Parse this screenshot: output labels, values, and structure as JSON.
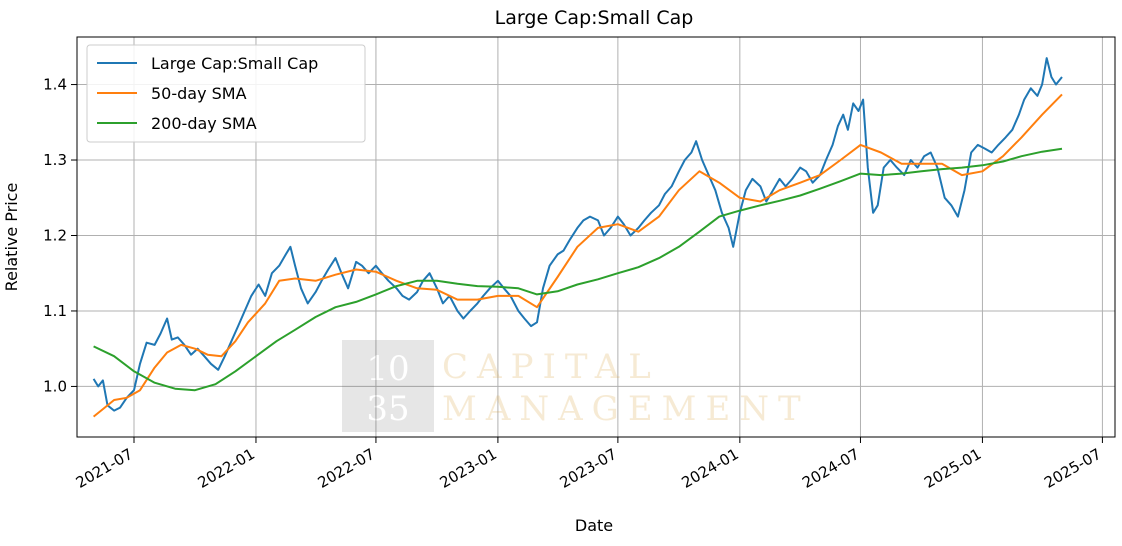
{
  "chart_data": {
    "type": "line",
    "title": "Large Cap:Small Cap",
    "xlabel": "Date",
    "ylabel": "Relative Price",
    "xlim": [
      "2021-04-06",
      "2025-07-20"
    ],
    "ylim": [
      0.933,
      1.463
    ],
    "x_ticks": [
      "2021-07-01",
      "2022-01-01",
      "2022-07-01",
      "2023-01-01",
      "2023-07-01",
      "2024-01-01",
      "2024-07-01",
      "2025-01-01",
      "2025-07-01"
    ],
    "x_tick_labels": [
      "2021-07",
      "2022-01",
      "2022-07",
      "2023-01",
      "2023-07",
      "2024-01",
      "2024-07",
      "2025-01",
      "2025-07"
    ],
    "y_ticks": [
      1.0,
      1.1,
      1.2,
      1.3,
      1.4
    ],
    "y_tick_labels": [
      "1.0",
      "1.1",
      "1.2",
      "1.3",
      "1.4"
    ],
    "grid": true,
    "legend_position": "top-left",
    "series": [
      {
        "name": "Large Cap:Small Cap",
        "color": "#1f77b4",
        "points": [
          [
            "2021-05-01",
            1.01
          ],
          [
            "2021-05-08",
            1.0
          ],
          [
            "2021-05-15",
            1.008
          ],
          [
            "2021-05-22",
            0.975
          ],
          [
            "2021-06-01",
            0.968
          ],
          [
            "2021-06-10",
            0.972
          ],
          [
            "2021-06-20",
            0.985
          ],
          [
            "2021-07-01",
            0.995
          ],
          [
            "2021-07-10",
            1.03
          ],
          [
            "2021-07-20",
            1.058
          ],
          [
            "2021-08-01",
            1.055
          ],
          [
            "2021-08-10",
            1.07
          ],
          [
            "2021-08-20",
            1.09
          ],
          [
            "2021-08-27",
            1.062
          ],
          [
            "2021-09-05",
            1.065
          ],
          [
            "2021-09-15",
            1.055
          ],
          [
            "2021-09-25",
            1.042
          ],
          [
            "2021-10-05",
            1.05
          ],
          [
            "2021-10-15",
            1.04
          ],
          [
            "2021-10-25",
            1.03
          ],
          [
            "2021-11-05",
            1.022
          ],
          [
            "2021-11-15",
            1.04
          ],
          [
            "2021-11-25",
            1.06
          ],
          [
            "2021-12-05",
            1.08
          ],
          [
            "2021-12-15",
            1.1
          ],
          [
            "2021-12-25",
            1.12
          ],
          [
            "2022-01-05",
            1.135
          ],
          [
            "2022-01-15",
            1.12
          ],
          [
            "2022-01-25",
            1.15
          ],
          [
            "2022-02-05",
            1.16
          ],
          [
            "2022-02-15",
            1.175
          ],
          [
            "2022-02-22",
            1.185
          ],
          [
            "2022-03-01",
            1.16
          ],
          [
            "2022-03-10",
            1.13
          ],
          [
            "2022-03-20",
            1.11
          ],
          [
            "2022-04-01",
            1.125
          ],
          [
            "2022-04-10",
            1.14
          ],
          [
            "2022-04-20",
            1.155
          ],
          [
            "2022-05-01",
            1.17
          ],
          [
            "2022-05-10",
            1.15
          ],
          [
            "2022-05-20",
            1.13
          ],
          [
            "2022-06-01",
            1.165
          ],
          [
            "2022-06-10",
            1.16
          ],
          [
            "2022-06-20",
            1.15
          ],
          [
            "2022-07-01",
            1.16
          ],
          [
            "2022-07-10",
            1.15
          ],
          [
            "2022-07-20",
            1.14
          ],
          [
            "2022-08-01",
            1.13
          ],
          [
            "2022-08-10",
            1.12
          ],
          [
            "2022-08-20",
            1.115
          ],
          [
            "2022-09-01",
            1.125
          ],
          [
            "2022-09-10",
            1.14
          ],
          [
            "2022-09-20",
            1.15
          ],
          [
            "2022-10-01",
            1.13
          ],
          [
            "2022-10-10",
            1.11
          ],
          [
            "2022-10-20",
            1.12
          ],
          [
            "2022-11-01",
            1.1
          ],
          [
            "2022-11-10",
            1.09
          ],
          [
            "2022-11-20",
            1.1
          ],
          [
            "2022-12-01",
            1.11
          ],
          [
            "2022-12-10",
            1.12
          ],
          [
            "2022-12-20",
            1.13
          ],
          [
            "2023-01-01",
            1.14
          ],
          [
            "2023-01-10",
            1.13
          ],
          [
            "2023-01-20",
            1.12
          ],
          [
            "2023-02-01",
            1.1
          ],
          [
            "2023-02-10",
            1.09
          ],
          [
            "2023-02-20",
            1.08
          ],
          [
            "2023-03-01",
            1.085
          ],
          [
            "2023-03-10",
            1.13
          ],
          [
            "2023-03-20",
            1.16
          ],
          [
            "2023-04-01",
            1.175
          ],
          [
            "2023-04-10",
            1.18
          ],
          [
            "2023-04-20",
            1.195
          ],
          [
            "2023-05-01",
            1.21
          ],
          [
            "2023-05-10",
            1.22
          ],
          [
            "2023-05-20",
            1.225
          ],
          [
            "2023-06-01",
            1.22
          ],
          [
            "2023-06-10",
            1.2
          ],
          [
            "2023-06-20",
            1.21
          ],
          [
            "2023-07-01",
            1.225
          ],
          [
            "2023-07-10",
            1.215
          ],
          [
            "2023-07-20",
            1.2
          ],
          [
            "2023-08-01",
            1.21
          ],
          [
            "2023-08-10",
            1.22
          ],
          [
            "2023-08-20",
            1.23
          ],
          [
            "2023-09-01",
            1.24
          ],
          [
            "2023-09-10",
            1.255
          ],
          [
            "2023-09-20",
            1.265
          ],
          [
            "2023-10-01",
            1.285
          ],
          [
            "2023-10-10",
            1.3
          ],
          [
            "2023-10-20",
            1.31
          ],
          [
            "2023-10-27",
            1.325
          ],
          [
            "2023-11-05",
            1.3
          ],
          [
            "2023-11-15",
            1.28
          ],
          [
            "2023-11-25",
            1.26
          ],
          [
            "2023-12-05",
            1.23
          ],
          [
            "2023-12-15",
            1.21
          ],
          [
            "2023-12-22",
            1.185
          ],
          [
            "2024-01-01",
            1.23
          ],
          [
            "2024-01-10",
            1.26
          ],
          [
            "2024-01-20",
            1.275
          ],
          [
            "2024-02-01",
            1.265
          ],
          [
            "2024-02-10",
            1.245
          ],
          [
            "2024-02-20",
            1.26
          ],
          [
            "2024-03-01",
            1.275
          ],
          [
            "2024-03-10",
            1.265
          ],
          [
            "2024-03-20",
            1.275
          ],
          [
            "2024-04-01",
            1.29
          ],
          [
            "2024-04-10",
            1.285
          ],
          [
            "2024-04-20",
            1.27
          ],
          [
            "2024-05-01",
            1.28
          ],
          [
            "2024-05-10",
            1.3
          ],
          [
            "2024-05-20",
            1.32
          ],
          [
            "2024-05-28",
            1.345
          ],
          [
            "2024-06-05",
            1.36
          ],
          [
            "2024-06-12",
            1.34
          ],
          [
            "2024-06-20",
            1.375
          ],
          [
            "2024-06-28",
            1.365
          ],
          [
            "2024-07-05",
            1.38
          ],
          [
            "2024-07-12",
            1.29
          ],
          [
            "2024-07-20",
            1.23
          ],
          [
            "2024-07-27",
            1.24
          ],
          [
            "2024-08-05",
            1.29
          ],
          [
            "2024-08-15",
            1.3
          ],
          [
            "2024-08-25",
            1.29
          ],
          [
            "2024-09-05",
            1.28
          ],
          [
            "2024-09-15",
            1.3
          ],
          [
            "2024-09-25",
            1.29
          ],
          [
            "2024-10-05",
            1.305
          ],
          [
            "2024-10-15",
            1.31
          ],
          [
            "2024-10-25",
            1.29
          ],
          [
            "2024-11-05",
            1.25
          ],
          [
            "2024-11-15",
            1.24
          ],
          [
            "2024-11-25",
            1.225
          ],
          [
            "2024-12-05",
            1.26
          ],
          [
            "2024-12-15",
            1.31
          ],
          [
            "2024-12-25",
            1.32
          ],
          [
            "2025-01-05",
            1.315
          ],
          [
            "2025-01-15",
            1.31
          ],
          [
            "2025-01-25",
            1.32
          ],
          [
            "2025-02-05",
            1.33
          ],
          [
            "2025-02-15",
            1.34
          ],
          [
            "2025-02-25",
            1.36
          ],
          [
            "2025-03-05",
            1.38
          ],
          [
            "2025-03-15",
            1.395
          ],
          [
            "2025-03-25",
            1.385
          ],
          [
            "2025-04-01",
            1.4
          ],
          [
            "2025-04-08",
            1.435
          ],
          [
            "2025-04-15",
            1.41
          ],
          [
            "2025-04-22",
            1.4
          ],
          [
            "2025-05-01",
            1.41
          ]
        ]
      },
      {
        "name": "50-day SMA",
        "color": "#ff7f0e",
        "points": [
          [
            "2021-05-01",
            0.96
          ],
          [
            "2021-05-15",
            0.97
          ],
          [
            "2021-06-01",
            0.982
          ],
          [
            "2021-06-20",
            0.985
          ],
          [
            "2021-07-10",
            0.995
          ],
          [
            "2021-08-01",
            1.025
          ],
          [
            "2021-08-20",
            1.045
          ],
          [
            "2021-09-10",
            1.055
          ],
          [
            "2021-10-01",
            1.05
          ],
          [
            "2021-10-20",
            1.042
          ],
          [
            "2021-11-10",
            1.04
          ],
          [
            "2021-12-01",
            1.06
          ],
          [
            "2021-12-20",
            1.085
          ],
          [
            "2022-01-15",
            1.11
          ],
          [
            "2022-02-05",
            1.14
          ],
          [
            "2022-03-01",
            1.143
          ],
          [
            "2022-04-01",
            1.14
          ],
          [
            "2022-05-01",
            1.148
          ],
          [
            "2022-06-01",
            1.155
          ],
          [
            "2022-07-01",
            1.152
          ],
          [
            "2022-08-01",
            1.14
          ],
          [
            "2022-09-01",
            1.13
          ],
          [
            "2022-10-01",
            1.128
          ],
          [
            "2022-11-01",
            1.115
          ],
          [
            "2022-12-01",
            1.115
          ],
          [
            "2023-01-01",
            1.12
          ],
          [
            "2023-02-01",
            1.12
          ],
          [
            "2023-03-01",
            1.105
          ],
          [
            "2023-04-01",
            1.145
          ],
          [
            "2023-05-01",
            1.185
          ],
          [
            "2023-06-01",
            1.21
          ],
          [
            "2023-07-01",
            1.215
          ],
          [
            "2023-08-01",
            1.205
          ],
          [
            "2023-09-01",
            1.225
          ],
          [
            "2023-10-01",
            1.26
          ],
          [
            "2023-11-01",
            1.285
          ],
          [
            "2023-12-01",
            1.27
          ],
          [
            "2024-01-01",
            1.25
          ],
          [
            "2024-02-01",
            1.245
          ],
          [
            "2024-03-01",
            1.26
          ],
          [
            "2024-04-01",
            1.27
          ],
          [
            "2024-05-01",
            1.28
          ],
          [
            "2024-06-01",
            1.3
          ],
          [
            "2024-07-01",
            1.32
          ],
          [
            "2024-08-01",
            1.31
          ],
          [
            "2024-09-01",
            1.295
          ],
          [
            "2024-10-01",
            1.295
          ],
          [
            "2024-11-01",
            1.295
          ],
          [
            "2024-12-01",
            1.28
          ],
          [
            "2025-01-01",
            1.285
          ],
          [
            "2025-02-01",
            1.305
          ],
          [
            "2025-03-01",
            1.33
          ],
          [
            "2025-04-01",
            1.36
          ],
          [
            "2025-05-01",
            1.387
          ]
        ]
      },
      {
        "name": "200-day SMA",
        "color": "#2ca02c",
        "points": [
          [
            "2021-05-01",
            1.053
          ],
          [
            "2021-06-01",
            1.04
          ],
          [
            "2021-07-01",
            1.02
          ],
          [
            "2021-08-01",
            1.005
          ],
          [
            "2021-09-01",
            0.997
          ],
          [
            "2021-10-01",
            0.995
          ],
          [
            "2021-11-01",
            1.003
          ],
          [
            "2021-12-01",
            1.02
          ],
          [
            "2022-01-01",
            1.04
          ],
          [
            "2022-02-01",
            1.06
          ],
          [
            "2022-03-01",
            1.075
          ],
          [
            "2022-04-01",
            1.092
          ],
          [
            "2022-05-01",
            1.105
          ],
          [
            "2022-06-01",
            1.112
          ],
          [
            "2022-07-01",
            1.122
          ],
          [
            "2022-08-01",
            1.133
          ],
          [
            "2022-09-01",
            1.14
          ],
          [
            "2022-10-01",
            1.14
          ],
          [
            "2022-11-01",
            1.136
          ],
          [
            "2022-12-01",
            1.133
          ],
          [
            "2023-01-01",
            1.132
          ],
          [
            "2023-02-01",
            1.13
          ],
          [
            "2023-03-01",
            1.122
          ],
          [
            "2023-04-01",
            1.126
          ],
          [
            "2023-05-01",
            1.135
          ],
          [
            "2023-06-01",
            1.142
          ],
          [
            "2023-07-01",
            1.15
          ],
          [
            "2023-08-01",
            1.158
          ],
          [
            "2023-09-01",
            1.17
          ],
          [
            "2023-10-01",
            1.185
          ],
          [
            "2023-11-01",
            1.205
          ],
          [
            "2023-12-01",
            1.225
          ],
          [
            "2024-01-01",
            1.233
          ],
          [
            "2024-02-01",
            1.24
          ],
          [
            "2024-03-01",
            1.246
          ],
          [
            "2024-04-01",
            1.253
          ],
          [
            "2024-05-01",
            1.262
          ],
          [
            "2024-06-01",
            1.272
          ],
          [
            "2024-07-01",
            1.282
          ],
          [
            "2024-08-01",
            1.28
          ],
          [
            "2024-09-01",
            1.282
          ],
          [
            "2024-10-01",
            1.285
          ],
          [
            "2024-11-01",
            1.288
          ],
          [
            "2024-12-01",
            1.29
          ],
          [
            "2025-01-01",
            1.293
          ],
          [
            "2025-02-01",
            1.298
          ],
          [
            "2025-03-01",
            1.305
          ],
          [
            "2025-04-01",
            1.311
          ],
          [
            "2025-05-01",
            1.315
          ]
        ]
      }
    ]
  },
  "watermark": {
    "box_top": "10",
    "box_bottom": "35",
    "line1": "CAPITAL",
    "line2": "MANAGEMENT"
  }
}
